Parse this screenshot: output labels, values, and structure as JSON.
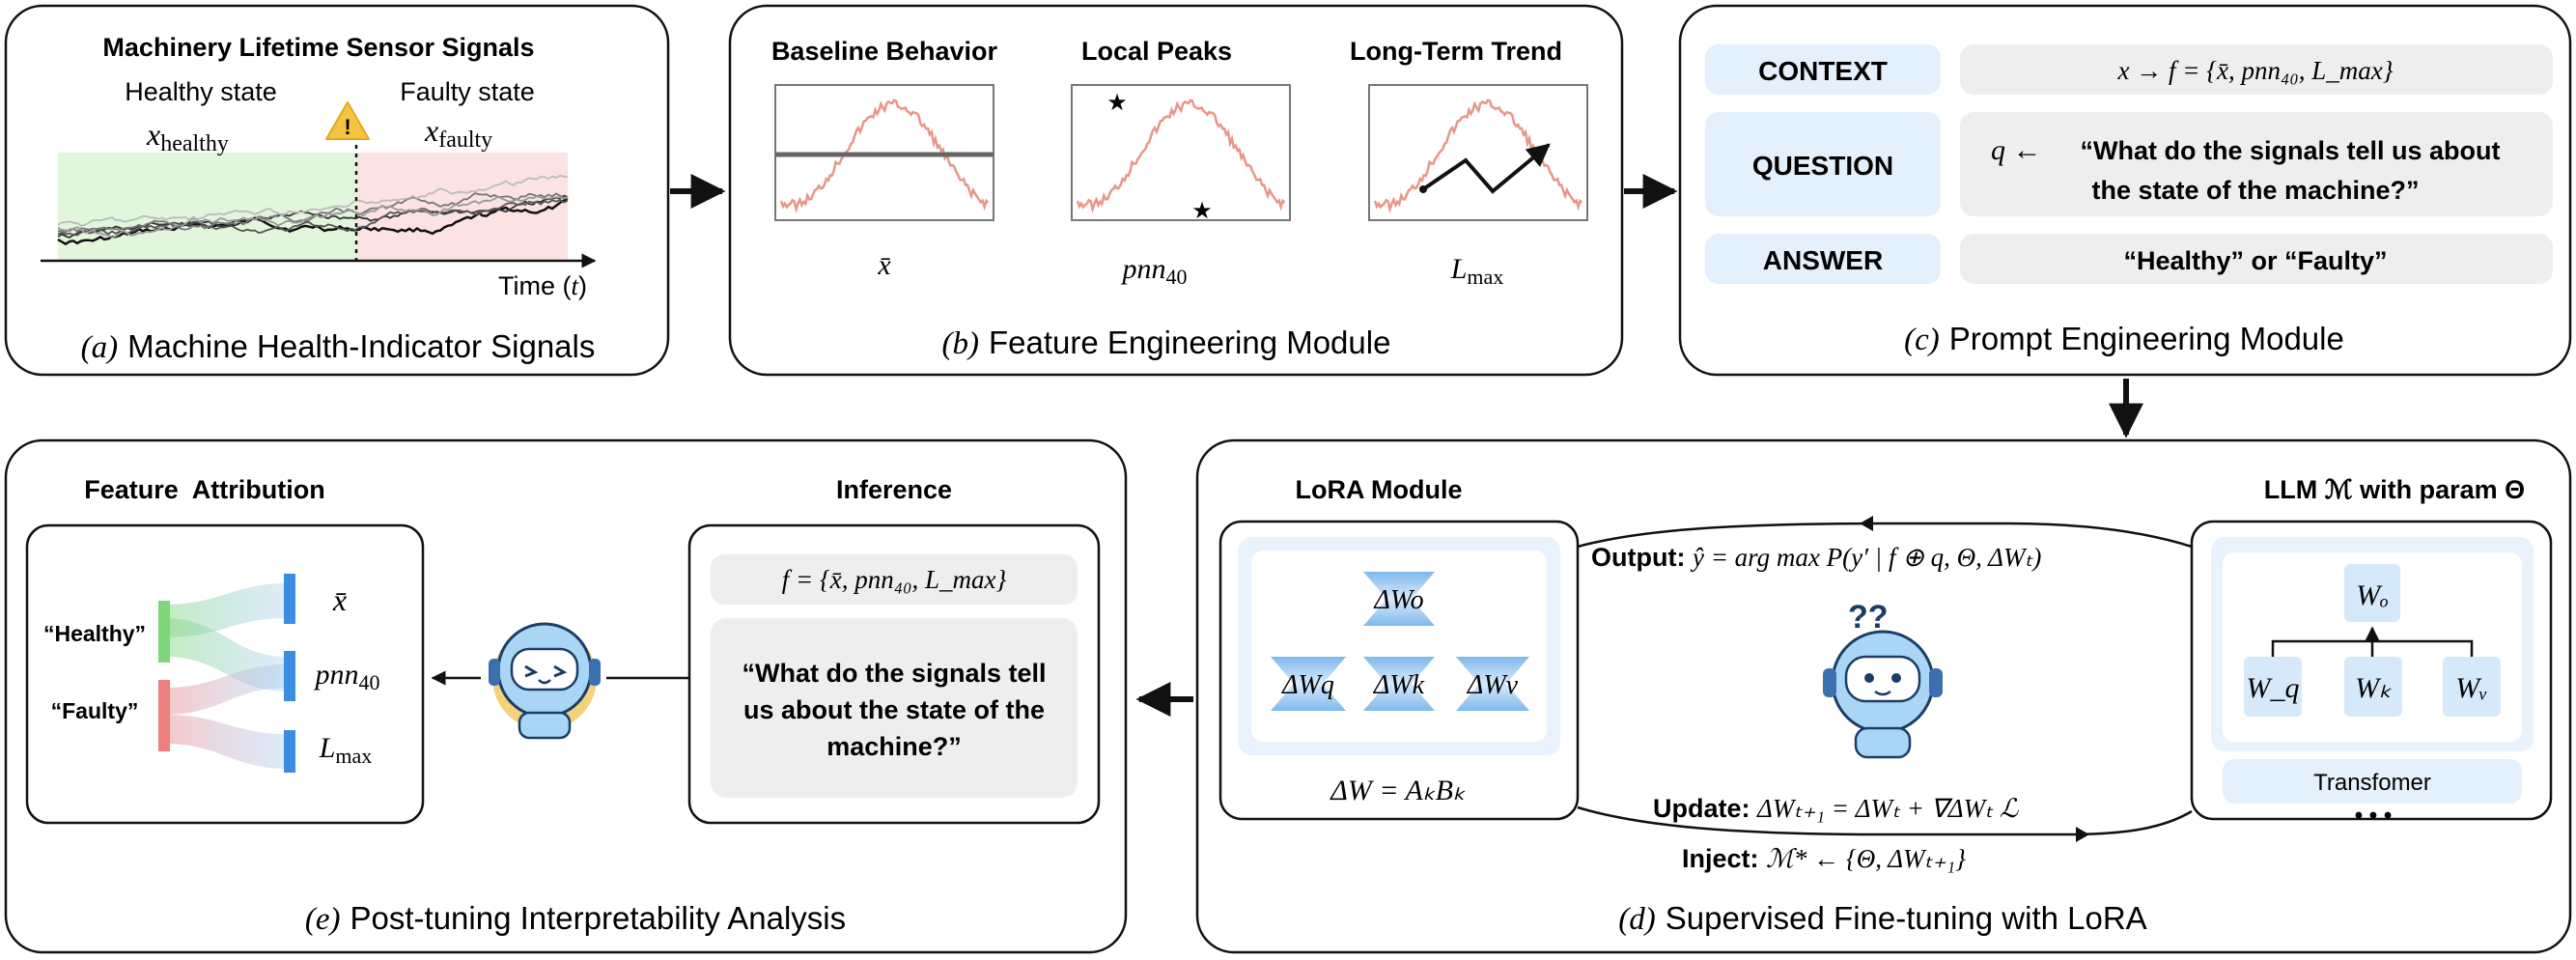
{
  "panel_a": {
    "title": "Machinery Lifetime Sensor Signals",
    "healthy_label": "Healthy state",
    "faulty_label": "Faulty state",
    "x_healthy_base": "x",
    "x_healthy_sub": "healthy",
    "x_faulty_base": "x",
    "x_faulty_sub": "faulty",
    "axis_label_text": "Time (",
    "axis_label_var": "t",
    "axis_label_close": ")",
    "warning_glyph": "!",
    "caption_prefix": "(a)",
    "caption": "Machine Health-Indicator Signals"
  },
  "panel_b": {
    "features": [
      {
        "title": "Baseline Behavior",
        "symbol": "x̄"
      },
      {
        "title": "Local Peaks",
        "symbol_base": "pnn",
        "symbol_sub": "40"
      },
      {
        "title": "Long-Term Trend",
        "symbol_base": "L",
        "symbol_sub": "max"
      }
    ],
    "caption_prefix": "(b)",
    "caption": "Feature Engineering Module"
  },
  "panel_c": {
    "rows": [
      {
        "label": "CONTEXT",
        "content": "x → f = {x̄, pnn₄₀, L_max}"
      },
      {
        "label": "QUESTION",
        "content_var": "q ←",
        "content_line1": "“What do the signals tell us about",
        "content_line2": "the state of the machine?”"
      },
      {
        "label": "ANSWER",
        "content": "“Healthy” or “Faulty”"
      }
    ],
    "caption_prefix": "(c)",
    "caption": "Prompt Engineering Module"
  },
  "panel_d": {
    "lora_title": "LoRA Module",
    "llm_title": "LLM ℳ with param Θ",
    "delta_o": "ΔWo",
    "delta_q": "ΔWq",
    "delta_k": "ΔWk",
    "delta_v": "ΔWv",
    "delta_formula": "ΔW = AₖBₖ",
    "output_label": "Output",
    "output_formula": "ŷ = arg max P(y′ | f ⊕ q, Θ, ΔWₜ)",
    "update_label": "Update",
    "update_formula": "ΔWₜ₊₁ = ΔWₜ + ∇ΔWₜ ℒ",
    "inject_label": "Inject",
    "inject_formula": "ℳ* ← {Θ, ΔWₜ₊₁}",
    "w_o": "Wₒ",
    "w_q": "W_q",
    "w_k": "Wₖ",
    "w_v": "Wᵥ",
    "transformer_label": "Transfomer",
    "dots": "• • •",
    "caption_prefix": "(d)",
    "caption": "Supervised Fine-tuning with LoRA"
  },
  "panel_e": {
    "attribution_title": "Feature  Attribution",
    "inference_title": "Inference",
    "healthy": "“Healthy”",
    "faulty": "“Faulty”",
    "feat_1": "x̄",
    "feat_2_base": "pnn",
    "feat_2_sub": "40",
    "feat_3_base": "L",
    "feat_3_sub": "max",
    "feature_set": "f = {x̄, pnn₄₀, L_max}",
    "question_line1": "“What do the signals tell",
    "question_line2": "us about the state of the",
    "question_line3": "machine?”",
    "caption_prefix": "(e)",
    "caption": "Post-tuning Interpretability Analysis"
  },
  "colors": {
    "healthy_bg": "#e2f6dc",
    "faulty_bg": "#fbe3e3",
    "signal": "#e8968a",
    "label_bg": "#e4f0fc",
    "content_bg": "#eeeeee",
    "lora_bar": "#a8d0f2",
    "node_blue": "#d6e9fa",
    "accent_blue": "#3b8de0",
    "healthy_green": "#7ed67a",
    "faulty_red": "#ee7d7d"
  }
}
